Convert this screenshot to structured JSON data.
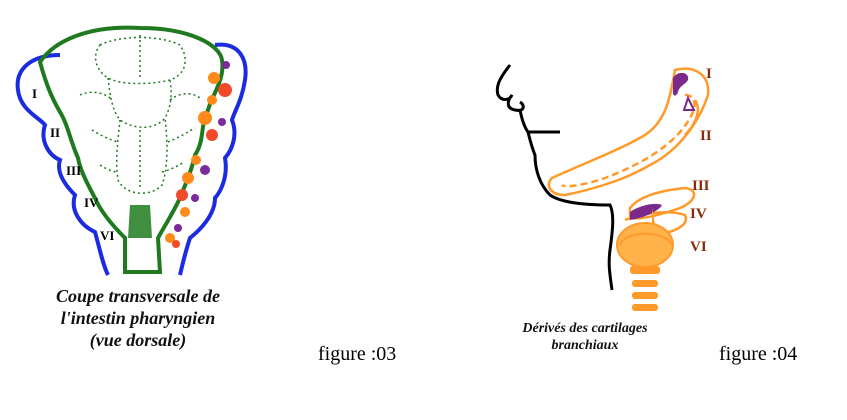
{
  "figure03": {
    "arch_labels": [
      "I",
      "II",
      "III",
      "IV",
      "VI"
    ],
    "caption": [
      "Coupe transversale de",
      "l'intestin pharyngien",
      "(vue dorsale)"
    ],
    "label": "figure :03",
    "colors": {
      "outline": "#1a2be0",
      "pharynx": "#1f7a1f",
      "orange": "#ff8a1a",
      "red": "#f04a2a",
      "purple": "#7a2a9a"
    }
  },
  "figure04": {
    "arch_labels": [
      "I",
      "II",
      "III",
      "IV",
      "VI"
    ],
    "caption": [
      "Dérivés des cartilages",
      "branchiaux"
    ],
    "label": "figure :04",
    "colors": {
      "profile": "#000000",
      "cartilage": "#ff9a2a",
      "purple": "#7a2a8a",
      "label": "#8b2a0a"
    }
  }
}
